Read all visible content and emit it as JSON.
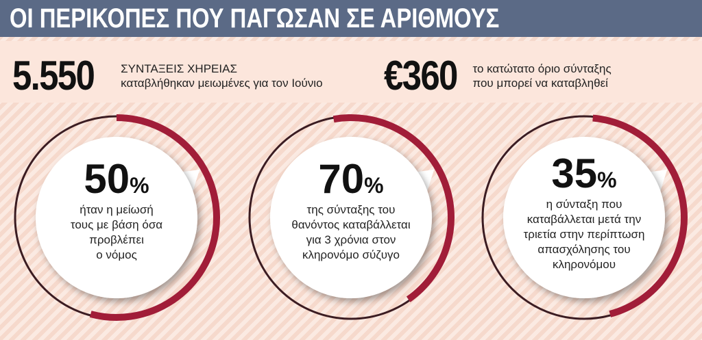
{
  "header": {
    "title": "ΟΙ ΠΕΡΙΚΟΠΕΣ ΠΟΥ ΠΑΓΩΣΑΝ ΣΕ ΑΡΙΘΜΟΥΣ"
  },
  "stats": [
    {
      "figure": "5.550",
      "lines": [
        "ΣΥΝΤΑΞΕΙΣ ΧΗΡΕΙΑΣ",
        "καταβλήθηκαν μειωμένες για τον Ιούνιο"
      ]
    },
    {
      "figure": "€360",
      "lines": [
        "το κατώτατο όριο σύνταξης",
        "που μπορεί να καταβληθεί"
      ]
    }
  ],
  "circles": [
    {
      "value": 50,
      "unit": "%",
      "lines": [
        "ήταν η μείωσή",
        "τους με βάση όσα",
        "προβλέπει",
        "ο νόμος"
      ]
    },
    {
      "value": 70,
      "unit": "%",
      "lines": [
        "της σύνταξης του",
        "θανόντος καταβάλλεται",
        "για 3 χρόνια στον",
        "κληρονόμο σύζυγο"
      ]
    },
    {
      "value": 35,
      "unit": "%",
      "lines": [
        "η σύνταξη που",
        "καταβάλλεται μετά την",
        "τριετία στην περίπτωση",
        "απασχόλησης του",
        "κληρονόμου"
      ]
    }
  ]
}
